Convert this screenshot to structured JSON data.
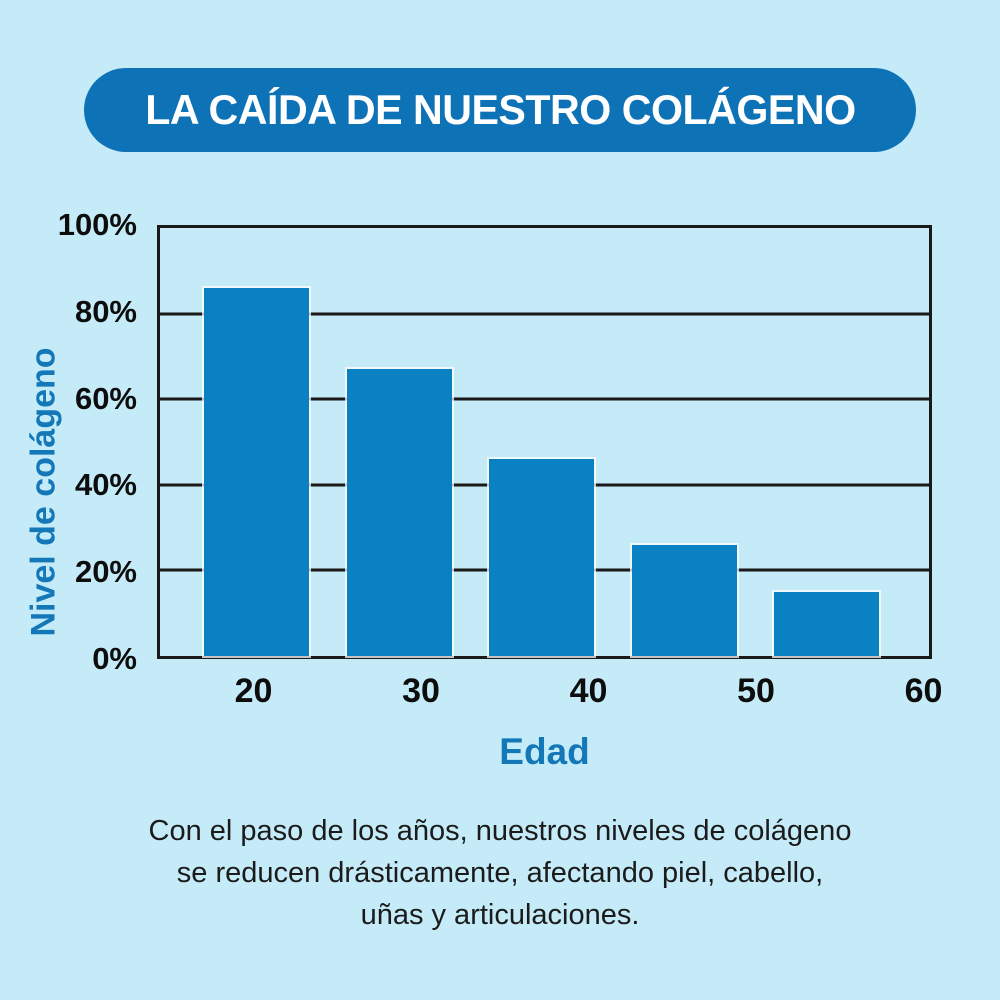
{
  "page": {
    "background": "#c4ebf7"
  },
  "banner": {
    "title": "LA CAÍDA DE NUESTRO COLÁGENO",
    "bg_color": "#0e72b6",
    "text_color": "#ffffff"
  },
  "chart_data": {
    "type": "bar",
    "title": "LA CAÍDA DE NUESTRO COLÁGENO",
    "categories": [
      "20",
      "30",
      "40",
      "50",
      "60"
    ],
    "values": [
      86,
      67,
      46,
      26,
      15
    ],
    "xlabel": "Edad",
    "ylabel": "Nivel de colágeno",
    "y_ticks": [
      "0%",
      "20%",
      "40%",
      "60%",
      "80%",
      "100%"
    ],
    "y_tick_values": [
      0,
      20,
      40,
      60,
      80,
      100
    ],
    "ylim": [
      0,
      100
    ],
    "grid": true,
    "legend": "none",
    "bar_color": "#0a81c2",
    "grid_color": "#1a1a1a",
    "axis_label_color": "#1477b8",
    "tick_label_color": "#0d0d0d"
  },
  "caption": {
    "lines": [
      "Con el paso de los años, nuestros niveles de colágeno",
      "se reducen drásticamente, afectando piel, cabello,",
      "uñas y articulaciones."
    ]
  }
}
